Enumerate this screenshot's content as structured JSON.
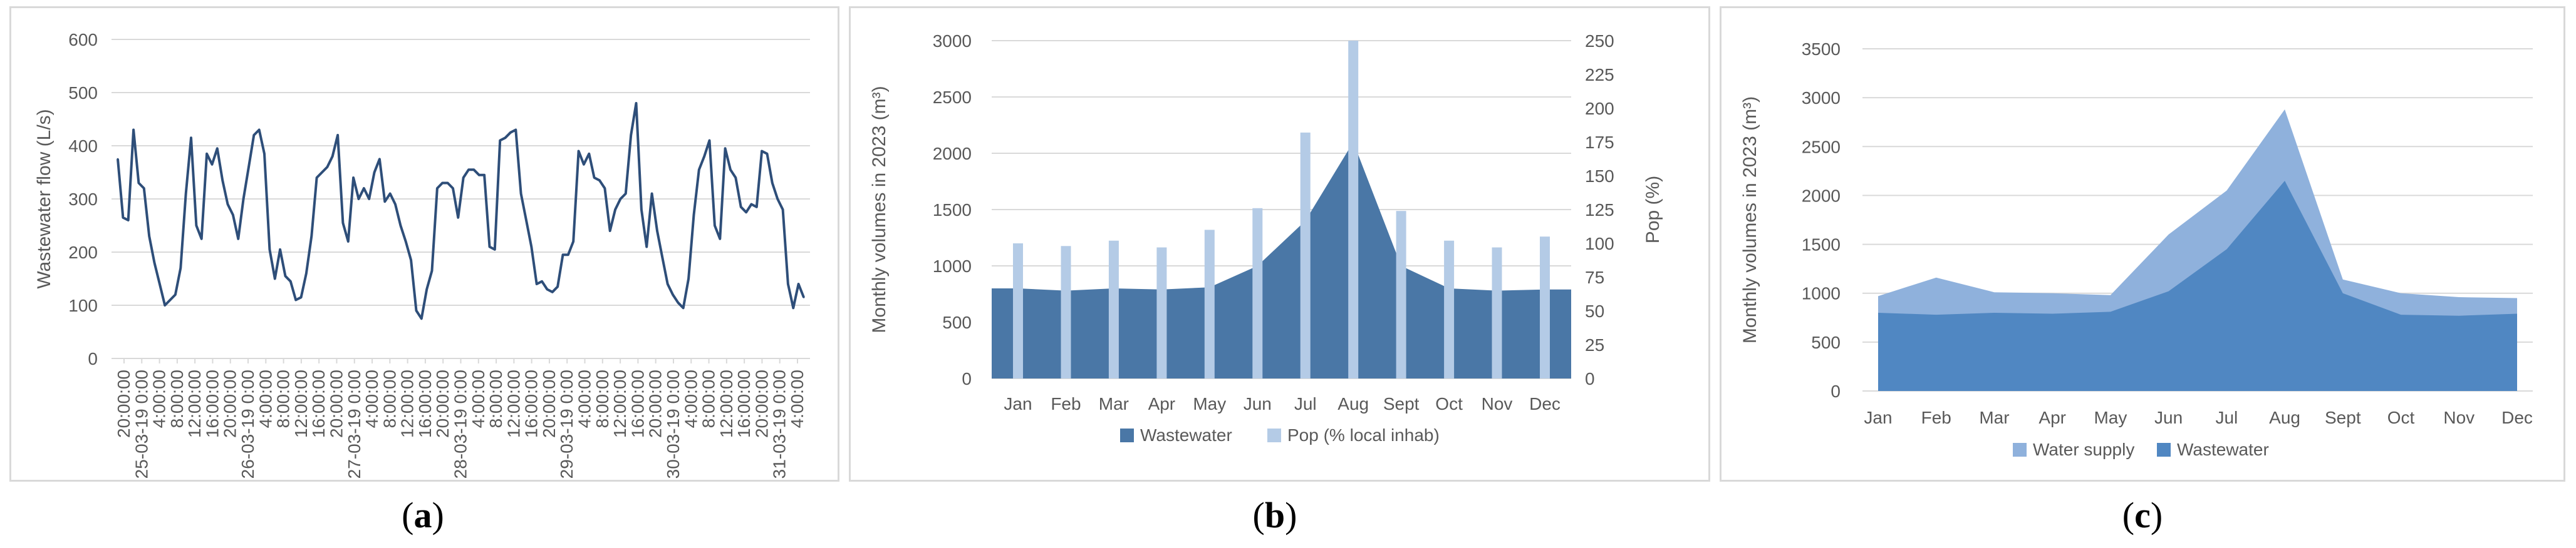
{
  "captions": {
    "a": {
      "open": "(",
      "letter": "a",
      "close": ")"
    },
    "b": {
      "open": "(",
      "letter": "b",
      "close": ")"
    },
    "c": {
      "open": "(",
      "letter": "c",
      "close": ")"
    }
  },
  "colors": {
    "line": "#2e4e79",
    "wastewater_b": "#4a77a6",
    "pop_bar": "#b4cbe6",
    "water_supply": "#8fb1dc",
    "wastewater_c": "#5087c2",
    "grid": "#d9d9d9",
    "text": "#595959"
  },
  "chart_data": [
    {
      "id": "a",
      "type": "line",
      "title": "",
      "xlabel": "",
      "ylabel": "Wastewater flow (L/s)",
      "ylim": [
        0,
        600
      ],
      "yticks": [
        0,
        100,
        200,
        300,
        400,
        500,
        600
      ],
      "grid": true,
      "xtick_labels": [
        "20:00:00",
        "25-03-19 0:00",
        "4:00:00",
        "8:00:00",
        "12:00:00",
        "16:00:00",
        "20:00:00",
        "26-03-19 0:00",
        "4:00:00",
        "8:00:00",
        "12:00:00",
        "16:00:00",
        "20:00:00",
        "27-03-19 0:00",
        "4:00:00",
        "8:00:00",
        "12:00:00",
        "16:00:00",
        "20:00:00",
        "28-03-19 0:00",
        "4:00:00",
        "8:00:00",
        "12:00:00",
        "16:00:00",
        "20:00:00",
        "29-03-19 0:00",
        "4:00:00",
        "8:00:00",
        "12:00:00",
        "16:00:00",
        "20:00:00",
        "30-03-19 0:00",
        "4:00:00",
        "8:00:00",
        "12:00:00",
        "16:00:00",
        "20:00:00",
        "31-03-19 0:00",
        "4:00:00"
      ],
      "series": [
        {
          "values": [
            375,
            265,
            260,
            430,
            330,
            320,
            230,
            180,
            140,
            100,
            110,
            120,
            170,
            310,
            415,
            250,
            225,
            385,
            365,
            395,
            335,
            290,
            270,
            225,
            300,
            360,
            420,
            430,
            385,
            205,
            150,
            205,
            155,
            145,
            110,
            115,
            160,
            230,
            340,
            350,
            360,
            380,
            420,
            255,
            220,
            340,
            300,
            320,
            300,
            350,
            375,
            295,
            310,
            290,
            250,
            220,
            185,
            90,
            75,
            130,
            165,
            320,
            330,
            330,
            320,
            265,
            340,
            355,
            355,
            345,
            345,
            210,
            205,
            410,
            415,
            425,
            430,
            310,
            260,
            210,
            140,
            145,
            130,
            125,
            135,
            195,
            195,
            220,
            390,
            365,
            385,
            340,
            335,
            320,
            240,
            280,
            300,
            310,
            420,
            480,
            280,
            210,
            310,
            240,
            190,
            140,
            120,
            105,
            95,
            150,
            270,
            355,
            380,
            410,
            250,
            225,
            395,
            355,
            340,
            285,
            275,
            290,
            285,
            390,
            385,
            330,
            300,
            280,
            140,
            95,
            140,
            115
          ]
        }
      ]
    },
    {
      "id": "b",
      "type": "area",
      "title": "",
      "xlabel": "",
      "ylabel": "Monthly volumes in 2023 (m³)",
      "y2label": "Pop (%)",
      "ylim": [
        0,
        3000
      ],
      "yticks": [
        0,
        500,
        1000,
        1500,
        2000,
        2500,
        3000
      ],
      "y2lim": [
        0,
        250
      ],
      "y2ticks": [
        0,
        25,
        50,
        75,
        100,
        125,
        150,
        175,
        200,
        225,
        250
      ],
      "grid": true,
      "legend": "bottom",
      "categories": [
        "Jan",
        "Feb",
        "Mar",
        "Apr",
        "May",
        "Jun",
        "Jul",
        "Aug",
        "Sept",
        "Oct",
        "Nov",
        "Dec"
      ],
      "series": [
        {
          "name": "Wastewater",
          "type": "area",
          "axis": "left",
          "values": [
            800,
            780,
            800,
            790,
            810,
            1000,
            1400,
            2100,
            1000,
            800,
            780,
            790
          ]
        },
        {
          "name": "Pop (% local inhab)",
          "type": "bar",
          "axis": "right",
          "values": [
            100,
            98,
            102,
            97,
            110,
            126,
            182,
            250,
            124,
            102,
            97,
            105
          ]
        }
      ]
    },
    {
      "id": "c",
      "type": "area",
      "title": "",
      "xlabel": "",
      "ylabel": "Monthly volumes in 2023 (m³)",
      "ylim": [
        0,
        3500
      ],
      "yticks": [
        0,
        500,
        1000,
        1500,
        2000,
        2500,
        3000,
        3500
      ],
      "grid": true,
      "legend": "bottom",
      "categories": [
        "Jan",
        "Feb",
        "Mar",
        "Apr",
        "May",
        "Jun",
        "Jul",
        "Aug",
        "Sept",
        "Oct",
        "Nov",
        "Dec"
      ],
      "series": [
        {
          "name": "Water supply",
          "values": [
            970,
            1160,
            1010,
            1000,
            980,
            1600,
            2050,
            2880,
            1140,
            1000,
            960,
            950
          ]
        },
        {
          "name": "Wastewater",
          "values": [
            800,
            780,
            800,
            790,
            810,
            1020,
            1450,
            2150,
            1000,
            780,
            770,
            790
          ]
        }
      ]
    }
  ]
}
